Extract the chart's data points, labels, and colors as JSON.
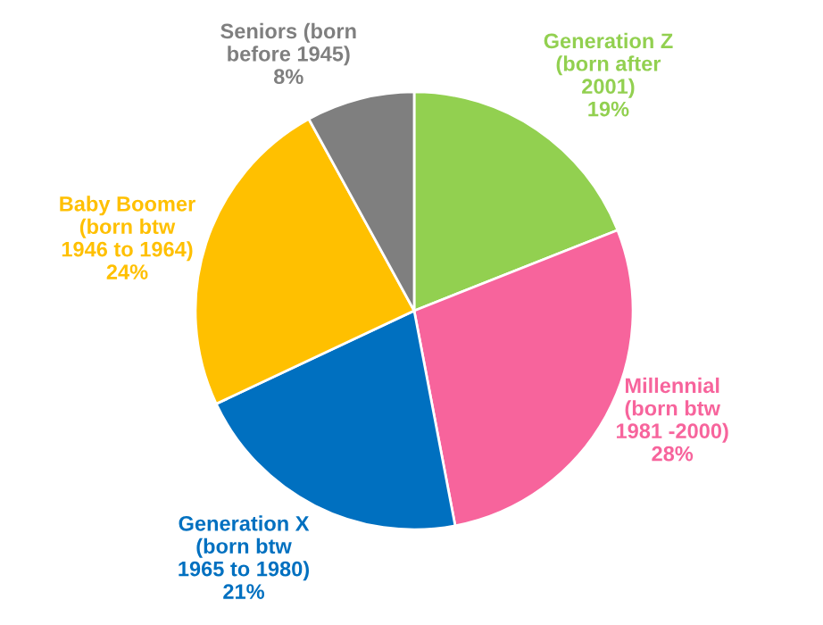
{
  "chart_data": {
    "type": "pie",
    "categories": [
      "Generation Z\n(born after\n2001)",
      "Millennial\n(born btw\n1981 -2000)",
      "Generation X\n(born btw\n1965 to 1980)",
      "Baby Boomer\n(born btw\n1946 to 1964)",
      "Seniors (born\nbefore 1945)"
    ],
    "values": [
      19,
      28,
      21,
      24,
      8
    ],
    "value_labels": [
      "19%",
      "28%",
      "21%",
      "24%",
      "8%"
    ],
    "colors": [
      "#92d050",
      "#f7649c",
      "#0070c0",
      "#ffc000",
      "#7f7f7f"
    ],
    "legend": false
  }
}
